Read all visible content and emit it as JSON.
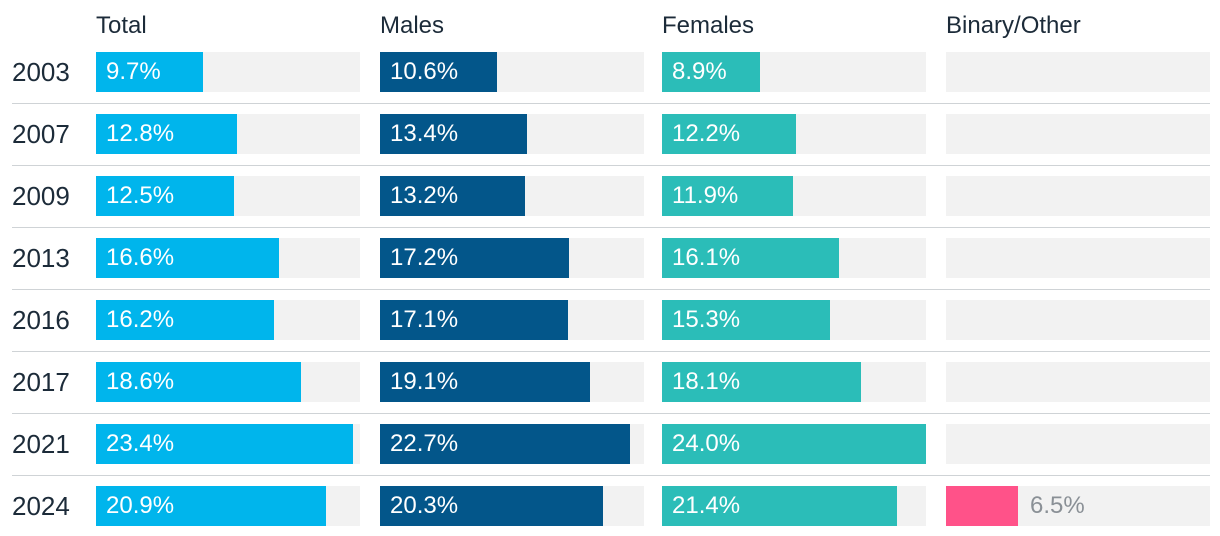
{
  "chart_data": {
    "type": "bar",
    "orientation": "horizontal",
    "layout": "small-multiples",
    "title": "",
    "x_max": 24.0,
    "categories": [
      "2003",
      "2007",
      "2009",
      "2013",
      "2016",
      "2017",
      "2021",
      "2024"
    ],
    "series": [
      {
        "name": "Total",
        "color": "#00b5ec",
        "values": [
          9.7,
          12.8,
          12.5,
          16.6,
          16.2,
          18.6,
          23.4,
          20.9
        ],
        "labels": [
          "9.7%",
          "12.8%",
          "12.5%",
          "16.6%",
          "16.2%",
          "18.6%",
          "23.4%",
          "20.9%"
        ]
      },
      {
        "name": "Males",
        "color": "#03568a",
        "values": [
          10.6,
          13.4,
          13.2,
          17.2,
          17.1,
          19.1,
          22.7,
          20.3
        ],
        "labels": [
          "10.6%",
          "13.4%",
          "13.2%",
          "17.2%",
          "17.1%",
          "19.1%",
          "22.7%",
          "20.3%"
        ]
      },
      {
        "name": "Females",
        "color": "#2bbdb8",
        "values": [
          8.9,
          12.2,
          11.9,
          16.1,
          15.3,
          18.1,
          24.0,
          21.4
        ],
        "labels": [
          "8.9%",
          "12.2%",
          "11.9%",
          "16.1%",
          "15.3%",
          "18.1%",
          "24.0%",
          "21.4%"
        ]
      },
      {
        "name": "Binary/Other",
        "color": "#ff5289",
        "values": [
          null,
          null,
          null,
          null,
          null,
          null,
          null,
          6.5
        ],
        "labels": [
          "",
          "",
          "",
          "",
          "",
          "",
          "",
          "6.5%"
        ]
      }
    ]
  }
}
